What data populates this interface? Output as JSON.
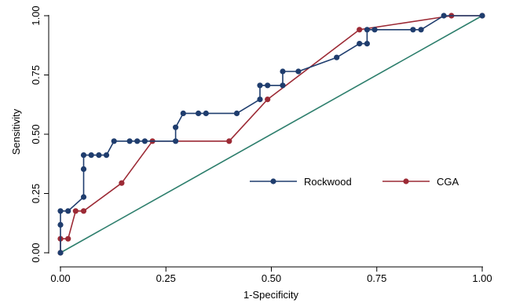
{
  "chart_data": {
    "type": "line",
    "title": "",
    "xlabel": "1-Specificity",
    "ylabel": "Sensitivity",
    "xlim": [
      0,
      1
    ],
    "ylim": [
      0,
      1
    ],
    "xticks": [
      "0.00",
      "0.25",
      "0.50",
      "0.75",
      "1.00"
    ],
    "yticks": [
      "0.00",
      "0.25",
      "0.50",
      "0.75",
      "1.00"
    ],
    "grid": false,
    "legend": "center-right",
    "series": [
      {
        "name": "Rockwood",
        "color": "#1f3d6e",
        "x": [
          0.0,
          0.0,
          0.0,
          0.018,
          0.055,
          0.055,
          0.055,
          0.073,
          0.091,
          0.109,
          0.127,
          0.164,
          0.182,
          0.2,
          0.273,
          0.273,
          0.291,
          0.327,
          0.345,
          0.418,
          0.473,
          0.473,
          0.491,
          0.527,
          0.527,
          0.564,
          0.655,
          0.709,
          0.727,
          0.727,
          0.745,
          0.836,
          0.855,
          0.909,
          1.0
        ],
        "y": [
          0.0,
          0.118,
          0.176,
          0.176,
          0.235,
          0.353,
          0.412,
          0.412,
          0.412,
          0.412,
          0.471,
          0.471,
          0.471,
          0.471,
          0.471,
          0.529,
          0.588,
          0.588,
          0.588,
          0.588,
          0.647,
          0.706,
          0.706,
          0.706,
          0.765,
          0.765,
          0.824,
          0.882,
          0.882,
          0.941,
          0.941,
          0.941,
          0.941,
          1.0,
          1.0
        ]
      },
      {
        "name": "CGA",
        "color": "#9c2a35",
        "x": [
          0.0,
          0.0,
          0.018,
          0.036,
          0.055,
          0.145,
          0.218,
          0.4,
          0.491,
          0.709,
          0.927,
          1.0
        ],
        "y": [
          0.0,
          0.059,
          0.059,
          0.176,
          0.176,
          0.294,
          0.471,
          0.471,
          0.647,
          0.941,
          1.0,
          1.0
        ]
      },
      {
        "name": "",
        "color": "#2e7f6d",
        "x": [
          0,
          1
        ],
        "y": [
          0,
          1
        ]
      }
    ]
  }
}
